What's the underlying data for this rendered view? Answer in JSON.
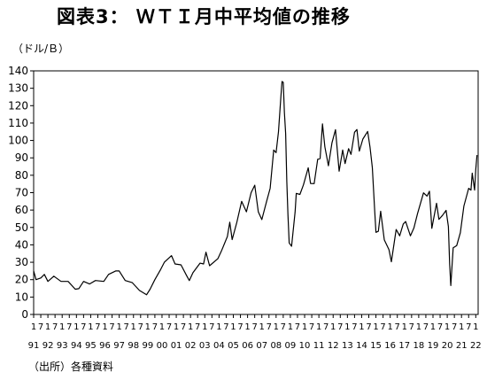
{
  "title": "図表3： ＷＴＩ月中平均値の推移",
  "unit_label": "（ドル/Ｂ）",
  "source_note": "（出所）各種資料",
  "chart_data": {
    "type": "line",
    "title": "図表3： ＷＴＩ月中平均値の推移",
    "ylabel": "（ドル/Ｂ）",
    "xlabel": "",
    "ylim": [
      0,
      140
    ],
    "yticks": [
      0,
      10,
      20,
      30,
      40,
      50,
      60,
      70,
      80,
      90,
      100,
      110,
      120,
      130,
      140
    ],
    "x_start": "1991-01",
    "x_end": "2022-03",
    "month_tick_labels": [
      "1",
      "7",
      "1",
      "7",
      "1",
      "7",
      "1",
      "7",
      "1",
      "7",
      "1",
      "7",
      "1",
      "7",
      "1",
      "7",
      "1",
      "7",
      "1",
      "7",
      "1",
      "7",
      "1",
      "7",
      "1",
      "7",
      "1",
      "7",
      "1",
      "7",
      "1",
      "7",
      "1",
      "7",
      "1",
      "7",
      "1",
      "7",
      "1",
      "7",
      "1",
      "7",
      "1",
      "7",
      "1",
      "7",
      "1",
      "7",
      "1",
      "7",
      "1",
      "7",
      "1",
      "7",
      "1",
      "7",
      "1",
      "7",
      "1",
      "7",
      "1",
      "7",
      "1"
    ],
    "year_tick_labels": [
      "91",
      "92",
      "93",
      "94",
      "95",
      "96",
      "97",
      "98",
      "99",
      "00",
      "01",
      "02",
      "03",
      "04",
      "05",
      "06",
      "07",
      "08",
      "09",
      "10",
      "11",
      "12",
      "13",
      "14",
      "15",
      "16",
      "17",
      "18",
      "19",
      "20",
      "21",
      "22"
    ],
    "grid": false,
    "line_color": "#000000",
    "series": [
      {
        "points": [
          [
            "1991-01",
            25
          ],
          [
            "1991-03",
            20
          ],
          [
            "1991-07",
            21
          ],
          [
            "1991-10",
            23
          ],
          [
            "1992-01",
            19
          ],
          [
            "1992-06",
            22
          ],
          [
            "1992-12",
            19
          ],
          [
            "1993-06",
            19
          ],
          [
            "1993-12",
            14.5
          ],
          [
            "1994-03",
            14.8
          ],
          [
            "1994-07",
            19
          ],
          [
            "1994-12",
            17.5
          ],
          [
            "1995-05",
            19.5
          ],
          [
            "1995-12",
            19
          ],
          [
            "1996-04",
            23
          ],
          [
            "1996-10",
            25
          ],
          [
            "1997-01",
            25
          ],
          [
            "1997-06",
            19.5
          ],
          [
            "1997-12",
            18.3
          ],
          [
            "1998-06",
            13.8
          ],
          [
            "1998-12",
            11.3
          ],
          [
            "1999-03",
            14.5
          ],
          [
            "1999-07",
            20
          ],
          [
            "1999-12",
            26
          ],
          [
            "2000-03",
            30
          ],
          [
            "2000-09",
            33.8
          ],
          [
            "2000-12",
            29
          ],
          [
            "2001-05",
            28.5
          ],
          [
            "2001-10",
            22
          ],
          [
            "2001-12",
            19.5
          ],
          [
            "2002-03",
            24
          ],
          [
            "2002-09",
            29.5
          ],
          [
            "2002-12",
            29
          ],
          [
            "2003-02",
            35.8
          ],
          [
            "2003-05",
            28
          ],
          [
            "2003-12",
            32
          ],
          [
            "2004-03",
            36.5
          ],
          [
            "2004-08",
            44.8
          ],
          [
            "2004-10",
            53
          ],
          [
            "2004-12",
            43
          ],
          [
            "2005-04",
            53
          ],
          [
            "2005-08",
            65
          ],
          [
            "2005-10",
            62
          ],
          [
            "2005-12",
            59
          ],
          [
            "2006-04",
            70
          ],
          [
            "2006-07",
            74.3
          ],
          [
            "2006-10",
            59
          ],
          [
            "2007-01",
            54.5
          ],
          [
            "2007-05",
            65
          ],
          [
            "2007-08",
            72.5
          ],
          [
            "2007-11",
            94.5
          ],
          [
            "2008-01",
            93
          ],
          [
            "2008-03",
            105
          ],
          [
            "2008-05",
            125
          ],
          [
            "2008-06",
            133.9
          ],
          [
            "2008-07",
            133.4
          ],
          [
            "2008-08",
            116
          ],
          [
            "2008-09",
            104
          ],
          [
            "2008-10",
            76.6
          ],
          [
            "2008-11",
            57.4
          ],
          [
            "2008-12",
            41.1
          ],
          [
            "2009-02",
            39.2
          ],
          [
            "2009-05",
            59
          ],
          [
            "2009-06",
            69.6
          ],
          [
            "2009-09",
            69
          ],
          [
            "2009-12",
            74.5
          ],
          [
            "2010-04",
            84.3
          ],
          [
            "2010-06",
            75.3
          ],
          [
            "2010-09",
            75.2
          ],
          [
            "2010-12",
            89.2
          ],
          [
            "2011-02",
            89.6
          ],
          [
            "2011-04",
            109.5
          ],
          [
            "2011-06",
            96.3
          ],
          [
            "2011-09",
            85.5
          ],
          [
            "2011-12",
            98.6
          ],
          [
            "2012-03",
            106.2
          ],
          [
            "2012-06",
            82.3
          ],
          [
            "2012-09",
            94.5
          ],
          [
            "2012-11",
            86.7
          ],
          [
            "2013-02",
            95.3
          ],
          [
            "2013-04",
            92
          ],
          [
            "2013-07",
            104.7
          ],
          [
            "2013-09",
            106.3
          ],
          [
            "2013-11",
            93.9
          ],
          [
            "2014-02",
            100.8
          ],
          [
            "2014-06",
            105.2
          ],
          [
            "2014-08",
            96.1
          ],
          [
            "2014-10",
            84.4
          ],
          [
            "2014-12",
            59.3
          ],
          [
            "2015-01",
            47.2
          ],
          [
            "2015-03",
            47.8
          ],
          [
            "2015-05",
            59.3
          ],
          [
            "2015-08",
            42.9
          ],
          [
            "2015-12",
            37.2
          ],
          [
            "2016-02",
            30.3
          ],
          [
            "2016-06",
            48.8
          ],
          [
            "2016-09",
            45.2
          ],
          [
            "2016-12",
            52
          ],
          [
            "2017-02",
            53.4
          ],
          [
            "2017-06",
            45.2
          ],
          [
            "2017-09",
            49.8
          ],
          [
            "2017-12",
            57.9
          ],
          [
            "2018-05",
            69.9
          ],
          [
            "2018-08",
            68
          ],
          [
            "2018-10",
            70.8
          ],
          [
            "2018-12",
            49.5
          ],
          [
            "2019-04",
            63.9
          ],
          [
            "2019-06",
            54.7
          ],
          [
            "2019-09",
            56.9
          ],
          [
            "2019-12",
            59.8
          ],
          [
            "2020-02",
            50.5
          ],
          [
            "2020-03",
            29.2
          ],
          [
            "2020-04",
            16.6
          ],
          [
            "2020-06",
            38.3
          ],
          [
            "2020-09",
            39.6
          ],
          [
            "2020-12",
            47
          ],
          [
            "2021-03",
            62.3
          ],
          [
            "2021-07",
            72.5
          ],
          [
            "2021-09",
            71.5
          ],
          [
            "2021-10",
            81.2
          ],
          [
            "2021-12",
            71.5
          ],
          [
            "2022-01",
            83.2
          ],
          [
            "2022-02",
            91.6
          ]
        ]
      }
    ]
  }
}
